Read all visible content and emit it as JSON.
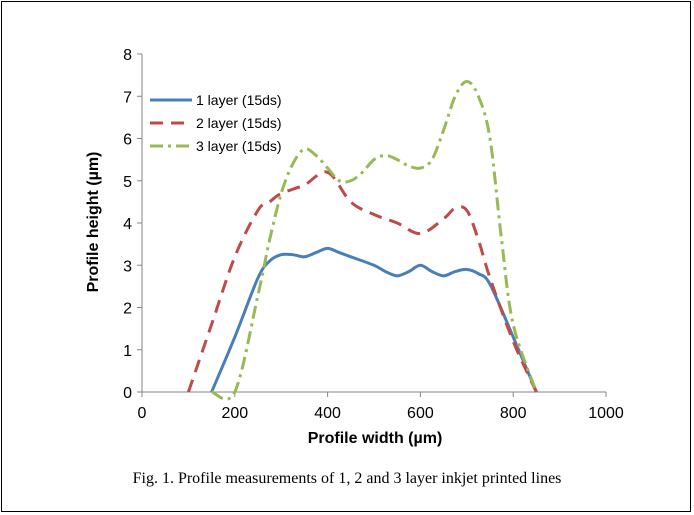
{
  "chart_data": {
    "type": "line",
    "xlabel": "Profile width (µm)",
    "ylabel": "Profile height (µm)",
    "xlim": [
      0,
      1000
    ],
    "ylim": [
      0,
      8
    ],
    "xticks": [
      0,
      200,
      400,
      600,
      800,
      1000
    ],
    "yticks": [
      0,
      1,
      2,
      3,
      4,
      5,
      6,
      7,
      8
    ],
    "grid": false,
    "legend_position": "top-left",
    "series": [
      {
        "name": "1 layer (15ds)",
        "color": "#4a7ebb",
        "style": "solid",
        "x": [
          150,
          200,
          250,
          275,
          300,
          325,
          350,
          375,
          400,
          425,
          450,
          500,
          525,
          550,
          575,
          600,
          625,
          650,
          675,
          700,
          725,
          750,
          800,
          850
        ],
        "y": [
          0,
          1.3,
          2.7,
          3.1,
          3.25,
          3.25,
          3.2,
          3.3,
          3.4,
          3.3,
          3.2,
          3.0,
          2.85,
          2.75,
          2.85,
          3.0,
          2.85,
          2.75,
          2.85,
          2.9,
          2.8,
          2.55,
          1.3,
          0
        ]
      },
      {
        "name": "2 layer (15ds)",
        "color": "#be4b48",
        "style": "dash",
        "x": [
          100,
          150,
          200,
          250,
          275,
          300,
          350,
          400,
          450,
          500,
          550,
          600,
          650,
          675,
          700,
          725,
          750,
          800,
          850
        ],
        "y": [
          0,
          1.6,
          3.2,
          4.3,
          4.5,
          4.7,
          4.9,
          5.2,
          4.5,
          4.2,
          4.0,
          3.75,
          4.1,
          4.35,
          4.3,
          3.6,
          2.7,
          1.2,
          0
        ]
      },
      {
        "name": "3 layer (15ds)",
        "color": "#98b954",
        "style": "dashdot",
        "x": [
          150,
          200,
          250,
          275,
          300,
          325,
          350,
          375,
          400,
          425,
          450,
          475,
          500,
          525,
          550,
          575,
          600,
          625,
          650,
          675,
          700,
          725,
          750,
          775,
          800,
          850
        ],
        "y": [
          0,
          0,
          2.3,
          3.6,
          4.7,
          5.4,
          5.75,
          5.6,
          5.3,
          5.0,
          5.0,
          5.2,
          5.5,
          5.6,
          5.5,
          5.35,
          5.3,
          5.5,
          6.2,
          7.0,
          7.35,
          7.0,
          6.0,
          3.6,
          1.6,
          0
        ]
      }
    ]
  },
  "caption": "Fig. 1. Profile measurements of 1, 2 and 3 layer inkjet printed lines"
}
